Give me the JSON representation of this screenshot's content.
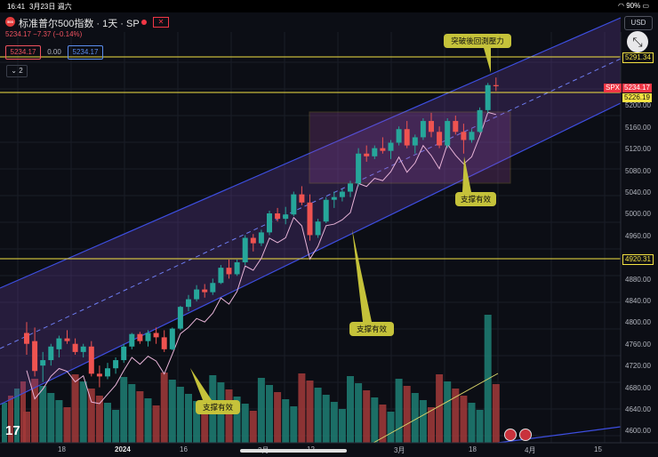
{
  "status": {
    "time": "16:41",
    "date": "3月23日 週六",
    "battery": "90%"
  },
  "symbol": {
    "logo": "500",
    "title": "标准普尔500指数 · 1天 · SP",
    "price_line": "5234.17  −7.37 (−0.14%)"
  },
  "quote": {
    "sell": "5234.17",
    "spread": "0.00",
    "buy": "5234.17"
  },
  "indicators_toggle": "2",
  "currency": "USD",
  "colors": {
    "up": "#26a69a",
    "down": "#ef5350",
    "channel": "#3d4ee0",
    "channel_fill": "#6b3fa0",
    "resistance": "#f5e342",
    "box_border": "#d4b04a",
    "annotation": "#c5c23a"
  },
  "price_axis": {
    "ticks": [
      "5200.00",
      "5160.00",
      "5120.00",
      "5080.00",
      "5040.00",
      "5000.00",
      "4960.00",
      "4880.00",
      "4840.00",
      "4800.00",
      "4760.00",
      "4720.00",
      "4680.00",
      "4640.00",
      "4600.00"
    ],
    "tags": {
      "resistance_top": "5291.34",
      "spx_label": "SPX",
      "last_price": "5234.17",
      "resistance_mid": "5226.19",
      "support_line": "4920.31"
    }
  },
  "time_axis": [
    "18",
    "2024",
    "16",
    "2月",
    "12",
    "3月",
    "18",
    "4月",
    "15"
  ],
  "annotations": {
    "breakout": "突破後回測壓力",
    "support_1": "支撑有效",
    "support_2": "支撑有效",
    "support_3": "支撑有效"
  },
  "chart_data": {
    "type": "candlestick",
    "ohlc": [
      [
        4780,
        4800,
        4740,
        4760
      ],
      [
        4765,
        4790,
        4700,
        4710
      ],
      [
        4720,
        4745,
        4690,
        4730
      ],
      [
        4730,
        4760,
        4720,
        4755
      ],
      [
        4750,
        4775,
        4735,
        4770
      ],
      [
        4770,
        4785,
        4760,
        4765
      ],
      [
        4760,
        4770,
        4740,
        4745
      ],
      [
        4745,
        4760,
        4735,
        4755
      ],
      [
        4755,
        4765,
        4700,
        4705
      ],
      [
        4705,
        4720,
        4680,
        4700
      ],
      [
        4700,
        4725,
        4695,
        4715
      ],
      [
        4715,
        4735,
        4705,
        4730
      ],
      [
        4730,
        4760,
        4725,
        4755
      ],
      [
        4755,
        4780,
        4750,
        4778
      ],
      [
        4778,
        4782,
        4760,
        4765
      ],
      [
        4765,
        4785,
        4755,
        4780
      ],
      [
        4780,
        4790,
        4760,
        4772
      ],
      [
        4772,
        4785,
        4745,
        4750
      ],
      [
        4750,
        4790,
        4748,
        4788
      ],
      [
        4788,
        4830,
        4785,
        4828
      ],
      [
        4828,
        4850,
        4820,
        4842
      ],
      [
        4842,
        4868,
        4838,
        4860
      ],
      [
        4860,
        4870,
        4845,
        4855
      ],
      [
        4855,
        4880,
        4850,
        4872
      ],
      [
        4872,
        4905,
        4870,
        4900
      ],
      [
        4900,
        4915,
        4880,
        4888
      ],
      [
        4888,
        4915,
        4885,
        4910
      ],
      [
        4910,
        4960,
        4905,
        4955
      ],
      [
        4955,
        4962,
        4930,
        4945
      ],
      [
        4945,
        4970,
        4940,
        4965
      ],
      [
        4965,
        5005,
        4960,
        5000
      ],
      [
        5000,
        5010,
        4985,
        4990
      ],
      [
        4990,
        5012,
        4980,
        4998
      ],
      [
        4998,
        5040,
        4995,
        5035
      ],
      [
        5035,
        5050,
        5015,
        5020
      ],
      [
        5020,
        5035,
        4950,
        4960
      ],
      [
        4960,
        4990,
        4955,
        4985
      ],
      [
        4985,
        5030,
        4982,
        5025
      ],
      [
        5025,
        5040,
        5010,
        5030
      ],
      [
        5030,
        5045,
        5022,
        5040
      ],
      [
        5040,
        5060,
        5030,
        5055
      ],
      [
        5055,
        5120,
        5050,
        5110
      ],
      [
        5110,
        5125,
        5095,
        5105
      ],
      [
        5105,
        5125,
        5100,
        5120
      ],
      [
        5120,
        5140,
        5110,
        5115
      ],
      [
        5115,
        5135,
        5100,
        5130
      ],
      [
        5130,
        5160,
        5125,
        5155
      ],
      [
        5155,
        5170,
        5120,
        5125
      ],
      [
        5125,
        5145,
        5110,
        5140
      ],
      [
        5140,
        5175,
        5135,
        5170
      ],
      [
        5170,
        5185,
        5140,
        5150
      ],
      [
        5150,
        5160,
        5120,
        5125
      ],
      [
        5125,
        5175,
        5120,
        5170
      ],
      [
        5170,
        5180,
        5145,
        5150
      ],
      [
        5150,
        5165,
        5110,
        5135
      ],
      [
        5135,
        5155,
        5130,
        5150
      ],
      [
        5150,
        5195,
        5148,
        5190
      ],
      [
        5190,
        5240,
        5185,
        5236
      ],
      [
        5236,
        5250,
        5225,
        5234
      ]
    ],
    "ylim": [
      4580,
      5320
    ]
  }
}
